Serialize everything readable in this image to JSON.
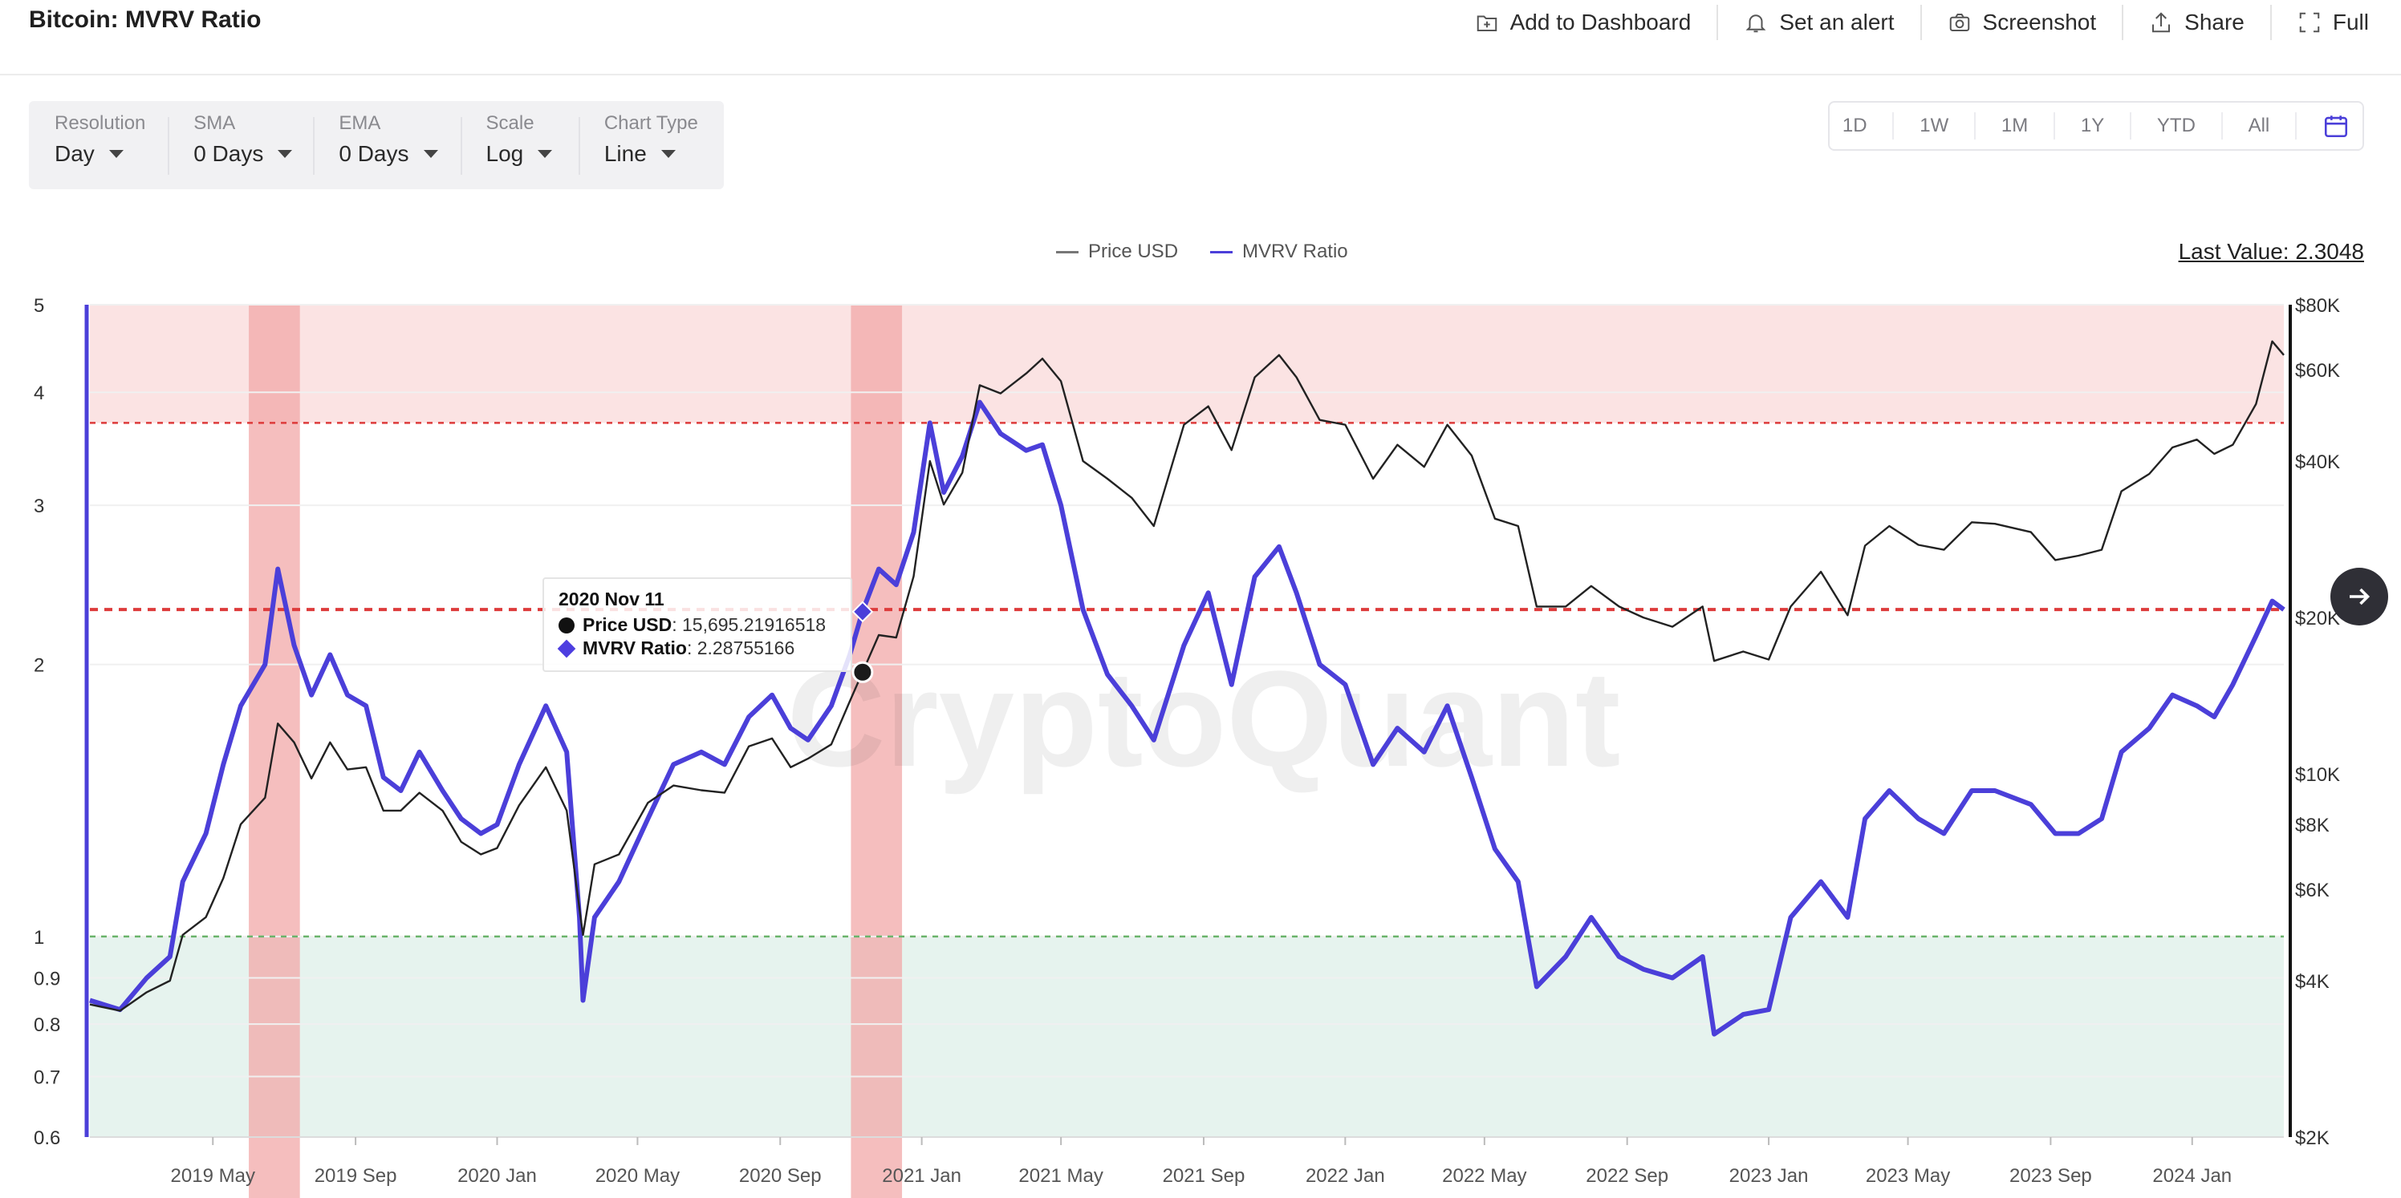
{
  "header": {
    "title": "Bitcoin: MVRV Ratio",
    "actions": [
      {
        "label": "Add to Dashboard",
        "icon": "dashboard-add-icon"
      },
      {
        "label": "Set an alert",
        "icon": "bell-icon"
      },
      {
        "label": "Screenshot",
        "icon": "camera-icon"
      },
      {
        "label": "Share",
        "icon": "share-icon"
      },
      {
        "label": "Full",
        "icon": "fullscreen-icon"
      }
    ]
  },
  "controls": [
    {
      "label": "Resolution",
      "value": "Day"
    },
    {
      "label": "SMA",
      "value": "0 Days"
    },
    {
      "label": "EMA",
      "value": "0 Days"
    },
    {
      "label": "Scale",
      "value": "Log"
    },
    {
      "label": "Chart Type",
      "value": "Line"
    }
  ],
  "ranges": [
    "1D",
    "1W",
    "1M",
    "1Y",
    "YTD",
    "All"
  ],
  "legend": {
    "price": "Price USD",
    "mvrv": "MVRV Ratio"
  },
  "last_value": "Last Value: 2.3048",
  "tooltip": {
    "date": "2020 Nov 11",
    "price_label": "Price USD",
    "price_value": ": 15,695.21916518",
    "mvrv_label": "MVRV Ratio",
    "mvrv_value": ": 2.28755166"
  },
  "watermark": "CryptoQuant",
  "colors": {
    "price": "#222222",
    "mvrv": "#4b3fd9",
    "overvalued_zone": "#fbe3e3",
    "undervalued_zone": "#e6f3ee",
    "highlight": "#f2a8a8",
    "threshold_red": "#dd3b3b",
    "threshold_green": "#6ab36a",
    "right_axis": "#111111",
    "left_axis": "#4b3fd9"
  },
  "chart_data": {
    "type": "line",
    "scale": "log",
    "left_axis": {
      "label": "MVRV Ratio",
      "ticks": [
        0.6,
        0.7,
        0.8,
        0.9,
        1,
        2,
        3,
        4,
        5
      ],
      "range": [
        0.6,
        5
      ]
    },
    "right_axis": {
      "label": "Price USD",
      "ticks": [
        2000,
        4000,
        6000,
        8000,
        10000,
        20000,
        40000,
        60000,
        80000
      ],
      "tick_labels": [
        "$2K",
        "$4K",
        "$6K",
        "$8K",
        "$10K",
        "$20K",
        "$40K",
        "$60K",
        "$80K"
      ],
      "range": [
        2000,
        80000
      ]
    },
    "x_range": [
      "2019-01-15",
      "2024-03-20"
    ],
    "x_ticks": [
      {
        "date": "2019-05-01",
        "label": "2019 May"
      },
      {
        "date": "2019-09-01",
        "label": "2019 Sep"
      },
      {
        "date": "2020-01-01",
        "label": "2020 Jan"
      },
      {
        "date": "2020-05-01",
        "label": "2020 May"
      },
      {
        "date": "2020-09-01",
        "label": "2020 Sep"
      },
      {
        "date": "2021-01-01",
        "label": "2021 Jan"
      },
      {
        "date": "2021-05-01",
        "label": "2021 May"
      },
      {
        "date": "2021-09-01",
        "label": "2021 Sep"
      },
      {
        "date": "2022-01-01",
        "label": "2022 Jan"
      },
      {
        "date": "2022-05-01",
        "label": "2022 May"
      },
      {
        "date": "2022-09-01",
        "label": "2022 Sep"
      },
      {
        "date": "2023-01-01",
        "label": "2023 Jan"
      },
      {
        "date": "2023-05-01",
        "label": "2023 May"
      },
      {
        "date": "2023-09-01",
        "label": "2023 Sep"
      },
      {
        "date": "2024-01-01",
        "label": "2024 Jan"
      }
    ],
    "zones": [
      {
        "name": "overvalued",
        "from": 3.7,
        "to": 5
      },
      {
        "name": "undervalued",
        "from": 0.6,
        "to": 1
      }
    ],
    "thresholds": [
      {
        "value": 3.7,
        "style": "dashed",
        "color": "red"
      },
      {
        "value": 2.3,
        "style": "dashed",
        "color": "red",
        "bold": true
      },
      {
        "value": 1.0,
        "style": "dashed",
        "color": "green"
      }
    ],
    "highlight_bands": [
      {
        "from": "2019-06-01",
        "to": "2019-07-15"
      },
      {
        "from": "2020-11-01",
        "to": "2020-12-15"
      }
    ],
    "tooltip_point": {
      "date": "2020-11-11",
      "price": 15695.21916518,
      "mvrv": 2.28755166
    },
    "series": [
      {
        "name": "MVRV Ratio",
        "axis": "left",
        "points": [
          [
            "2019-01-15",
            0.85
          ],
          [
            "2019-02-10",
            0.83
          ],
          [
            "2019-03-05",
            0.9
          ],
          [
            "2019-03-25",
            0.95
          ],
          [
            "2019-04-05",
            1.15
          ],
          [
            "2019-04-25",
            1.3
          ],
          [
            "2019-05-10",
            1.55
          ],
          [
            "2019-05-25",
            1.8
          ],
          [
            "2019-06-15",
            2.0
          ],
          [
            "2019-06-26",
            2.55
          ],
          [
            "2019-07-10",
            2.1
          ],
          [
            "2019-07-25",
            1.85
          ],
          [
            "2019-08-10",
            2.05
          ],
          [
            "2019-08-25",
            1.85
          ],
          [
            "2019-09-10",
            1.8
          ],
          [
            "2019-09-25",
            1.5
          ],
          [
            "2019-10-10",
            1.45
          ],
          [
            "2019-10-26",
            1.6
          ],
          [
            "2019-11-15",
            1.45
          ],
          [
            "2019-12-01",
            1.35
          ],
          [
            "2019-12-18",
            1.3
          ],
          [
            "2020-01-01",
            1.33
          ],
          [
            "2020-01-20",
            1.55
          ],
          [
            "2020-02-12",
            1.8
          ],
          [
            "2020-03-01",
            1.6
          ],
          [
            "2020-03-12",
            1.05
          ],
          [
            "2020-03-15",
            0.85
          ],
          [
            "2020-03-25",
            1.05
          ],
          [
            "2020-04-15",
            1.15
          ],
          [
            "2020-05-10",
            1.35
          ],
          [
            "2020-06-01",
            1.55
          ],
          [
            "2020-06-25",
            1.6
          ],
          [
            "2020-07-15",
            1.55
          ],
          [
            "2020-08-05",
            1.75
          ],
          [
            "2020-08-25",
            1.85
          ],
          [
            "2020-09-10",
            1.7
          ],
          [
            "2020-09-25",
            1.65
          ],
          [
            "2020-10-15",
            1.8
          ],
          [
            "2020-10-31",
            2.05
          ],
          [
            "2020-11-11",
            2.29
          ],
          [
            "2020-11-25",
            2.55
          ],
          [
            "2020-12-10",
            2.45
          ],
          [
            "2020-12-25",
            2.8
          ],
          [
            "2021-01-08",
            3.7
          ],
          [
            "2021-01-20",
            3.1
          ],
          [
            "2021-02-05",
            3.4
          ],
          [
            "2021-02-20",
            3.9
          ],
          [
            "2021-03-10",
            3.6
          ],
          [
            "2021-04-01",
            3.45
          ],
          [
            "2021-04-15",
            3.5
          ],
          [
            "2021-05-01",
            3.0
          ],
          [
            "2021-05-20",
            2.3
          ],
          [
            "2021-06-10",
            1.95
          ],
          [
            "2021-07-01",
            1.8
          ],
          [
            "2021-07-20",
            1.65
          ],
          [
            "2021-08-15",
            2.1
          ],
          [
            "2021-09-05",
            2.4
          ],
          [
            "2021-09-25",
            1.9
          ],
          [
            "2021-10-15",
            2.5
          ],
          [
            "2021-11-05",
            2.7
          ],
          [
            "2021-11-20",
            2.4
          ],
          [
            "2021-12-10",
            2.0
          ],
          [
            "2022-01-01",
            1.9
          ],
          [
            "2022-01-25",
            1.55
          ],
          [
            "2022-02-15",
            1.7
          ],
          [
            "2022-03-10",
            1.6
          ],
          [
            "2022-03-30",
            1.8
          ],
          [
            "2022-04-20",
            1.5
          ],
          [
            "2022-05-10",
            1.25
          ],
          [
            "2022-05-30",
            1.15
          ],
          [
            "2022-06-15",
            0.88
          ],
          [
            "2022-07-10",
            0.95
          ],
          [
            "2022-08-01",
            1.05
          ],
          [
            "2022-08-25",
            0.95
          ],
          [
            "2022-09-15",
            0.92
          ],
          [
            "2022-10-10",
            0.9
          ],
          [
            "2022-11-05",
            0.95
          ],
          [
            "2022-11-15",
            0.78
          ],
          [
            "2022-12-10",
            0.82
          ],
          [
            "2023-01-01",
            0.83
          ],
          [
            "2023-01-20",
            1.05
          ],
          [
            "2023-02-15",
            1.15
          ],
          [
            "2023-03-10",
            1.05
          ],
          [
            "2023-03-25",
            1.35
          ],
          [
            "2023-04-15",
            1.45
          ],
          [
            "2023-05-10",
            1.35
          ],
          [
            "2023-06-01",
            1.3
          ],
          [
            "2023-06-25",
            1.45
          ],
          [
            "2023-07-15",
            1.45
          ],
          [
            "2023-08-15",
            1.4
          ],
          [
            "2023-09-05",
            1.3
          ],
          [
            "2023-09-25",
            1.3
          ],
          [
            "2023-10-15",
            1.35
          ],
          [
            "2023-11-01",
            1.6
          ],
          [
            "2023-11-25",
            1.7
          ],
          [
            "2023-12-15",
            1.85
          ],
          [
            "2024-01-05",
            1.8
          ],
          [
            "2024-01-20",
            1.75
          ],
          [
            "2024-02-05",
            1.9
          ],
          [
            "2024-02-25",
            2.15
          ],
          [
            "2024-03-10",
            2.35
          ],
          [
            "2024-03-20",
            2.3
          ]
        ]
      },
      {
        "name": "Price USD",
        "axis": "right",
        "points": [
          [
            "2019-01-15",
            3600
          ],
          [
            "2019-02-10",
            3500
          ],
          [
            "2019-03-05",
            3800
          ],
          [
            "2019-03-25",
            4000
          ],
          [
            "2019-04-05",
            4900
          ],
          [
            "2019-04-25",
            5300
          ],
          [
            "2019-05-10",
            6300
          ],
          [
            "2019-05-25",
            8000
          ],
          [
            "2019-06-15",
            9000
          ],
          [
            "2019-06-26",
            12500
          ],
          [
            "2019-07-10",
            11500
          ],
          [
            "2019-07-25",
            9800
          ],
          [
            "2019-08-10",
            11500
          ],
          [
            "2019-08-25",
            10200
          ],
          [
            "2019-09-10",
            10300
          ],
          [
            "2019-09-25",
            8500
          ],
          [
            "2019-10-10",
            8500
          ],
          [
            "2019-10-26",
            9200
          ],
          [
            "2019-11-15",
            8500
          ],
          [
            "2019-12-01",
            7400
          ],
          [
            "2019-12-18",
            7000
          ],
          [
            "2020-01-01",
            7200
          ],
          [
            "2020-01-20",
            8700
          ],
          [
            "2020-02-12",
            10300
          ],
          [
            "2020-03-01",
            8500
          ],
          [
            "2020-03-12",
            5500
          ],
          [
            "2020-03-15",
            4900
          ],
          [
            "2020-03-25",
            6700
          ],
          [
            "2020-04-15",
            7000
          ],
          [
            "2020-05-10",
            8800
          ],
          [
            "2020-06-01",
            9500
          ],
          [
            "2020-06-25",
            9300
          ],
          [
            "2020-07-15",
            9200
          ],
          [
            "2020-08-05",
            11300
          ],
          [
            "2020-08-25",
            11700
          ],
          [
            "2020-09-10",
            10300
          ],
          [
            "2020-09-25",
            10700
          ],
          [
            "2020-10-15",
            11400
          ],
          [
            "2020-10-31",
            13800
          ],
          [
            "2020-11-11",
            15700
          ],
          [
            "2020-11-25",
            18500
          ],
          [
            "2020-12-10",
            18300
          ],
          [
            "2020-12-25",
            24000
          ],
          [
            "2021-01-08",
            40000
          ],
          [
            "2021-01-20",
            33000
          ],
          [
            "2021-02-05",
            38000
          ],
          [
            "2021-02-20",
            56000
          ],
          [
            "2021-03-10",
            54000
          ],
          [
            "2021-04-01",
            59000
          ],
          [
            "2021-04-15",
            63000
          ],
          [
            "2021-05-01",
            57000
          ],
          [
            "2021-05-20",
            40000
          ],
          [
            "2021-06-10",
            37000
          ],
          [
            "2021-07-01",
            34000
          ],
          [
            "2021-07-20",
            30000
          ],
          [
            "2021-08-15",
            47000
          ],
          [
            "2021-09-05",
            51000
          ],
          [
            "2021-09-25",
            42000
          ],
          [
            "2021-10-15",
            58000
          ],
          [
            "2021-11-05",
            64000
          ],
          [
            "2021-11-20",
            58000
          ],
          [
            "2021-12-10",
            48000
          ],
          [
            "2022-01-01",
            47000
          ],
          [
            "2022-01-25",
            37000
          ],
          [
            "2022-02-15",
            43000
          ],
          [
            "2022-03-10",
            39000
          ],
          [
            "2022-03-30",
            47000
          ],
          [
            "2022-04-20",
            41000
          ],
          [
            "2022-05-10",
            31000
          ],
          [
            "2022-05-30",
            30000
          ],
          [
            "2022-06-15",
            21000
          ],
          [
            "2022-07-10",
            21000
          ],
          [
            "2022-08-01",
            23000
          ],
          [
            "2022-08-25",
            21000
          ],
          [
            "2022-09-15",
            20000
          ],
          [
            "2022-10-10",
            19200
          ],
          [
            "2022-11-05",
            21000
          ],
          [
            "2022-11-15",
            16500
          ],
          [
            "2022-12-10",
            17200
          ],
          [
            "2023-01-01",
            16600
          ],
          [
            "2023-01-20",
            21000
          ],
          [
            "2023-02-15",
            24500
          ],
          [
            "2023-03-10",
            20200
          ],
          [
            "2023-03-25",
            27500
          ],
          [
            "2023-04-15",
            30000
          ],
          [
            "2023-05-10",
            27600
          ],
          [
            "2023-06-01",
            27000
          ],
          [
            "2023-06-25",
            30500
          ],
          [
            "2023-07-15",
            30300
          ],
          [
            "2023-08-15",
            29200
          ],
          [
            "2023-09-05",
            25800
          ],
          [
            "2023-09-25",
            26300
          ],
          [
            "2023-10-15",
            27000
          ],
          [
            "2023-11-01",
            35000
          ],
          [
            "2023-11-25",
            37800
          ],
          [
            "2023-12-15",
            42500
          ],
          [
            "2024-01-05",
            44000
          ],
          [
            "2024-01-20",
            41300
          ],
          [
            "2024-02-05",
            43000
          ],
          [
            "2024-02-25",
            51500
          ],
          [
            "2024-03-10",
            68000
          ],
          [
            "2024-03-20",
            64000
          ]
        ]
      }
    ]
  }
}
